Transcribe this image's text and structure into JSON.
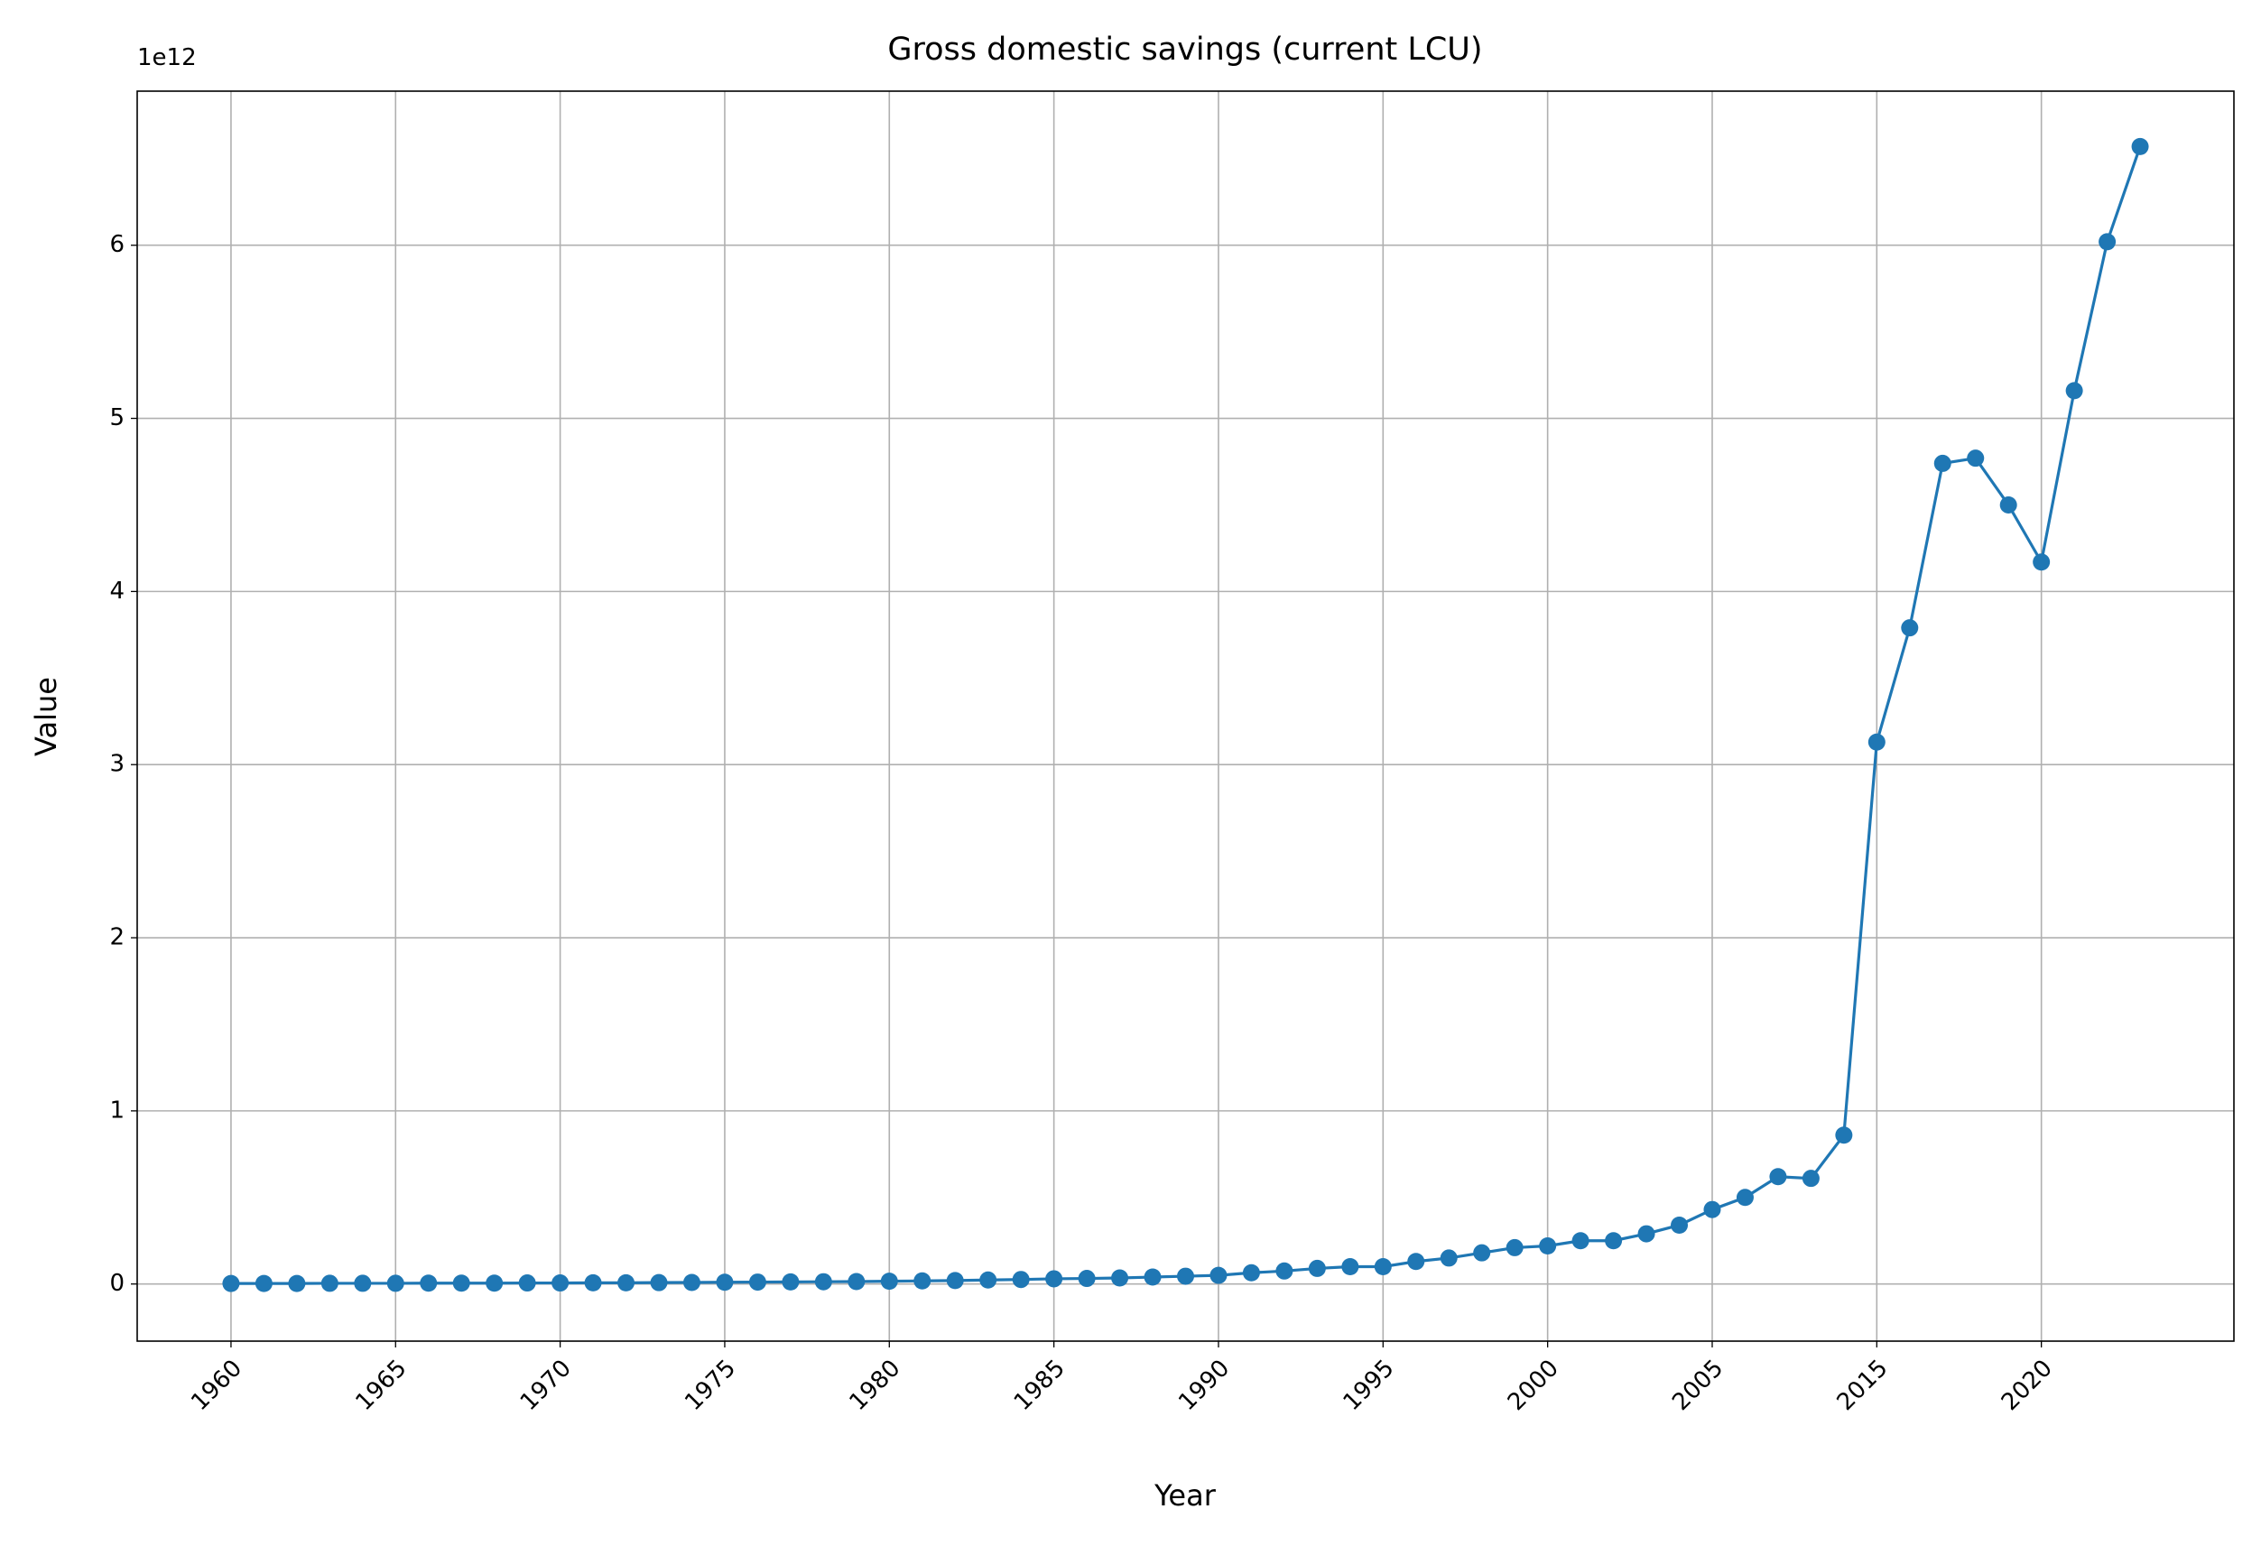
{
  "chart_data": {
    "type": "line",
    "title": "Gross domestic savings (current LCU)",
    "x_label": "Year",
    "y_label": "Value",
    "y_offset_label": "1e12",
    "categories": [
      "1960",
      null,
      null,
      null,
      null,
      "1965",
      null,
      null,
      null,
      null,
      "1970",
      null,
      null,
      null,
      null,
      "1975",
      null,
      null,
      null,
      null,
      "1980",
      null,
      null,
      null,
      null,
      "1985",
      null,
      null,
      null,
      null,
      "1990",
      null,
      null,
      null,
      null,
      "1995",
      null,
      null,
      null,
      null,
      "2000",
      null,
      null,
      null,
      null,
      "2005",
      null,
      null,
      null,
      null,
      "2015",
      null,
      null,
      null,
      null,
      "2020",
      null,
      null,
      null
    ],
    "series": [
      {
        "name": "Gross domestic savings",
        "color": "#1f77b4",
        "values": [
          0.003,
          0.003,
          0.003,
          0.004,
          0.004,
          0.004,
          0.005,
          0.005,
          0.005,
          0.006,
          0.006,
          0.007,
          0.007,
          0.008,
          0.009,
          0.01,
          0.011,
          0.012,
          0.013,
          0.014,
          0.016,
          0.018,
          0.02,
          0.023,
          0.026,
          0.03,
          0.032,
          0.035,
          0.04,
          0.045,
          0.05,
          0.065,
          0.075,
          0.09,
          0.1,
          0.1,
          0.13,
          0.15,
          0.18,
          0.21,
          0.22,
          0.25,
          0.25,
          0.29,
          0.34,
          0.43,
          0.5,
          0.62,
          0.61,
          0.86,
          3.13,
          3.79,
          4.74,
          4.77,
          4.5,
          4.17,
          5.16,
          6.02,
          6.57
        ]
      }
    ],
    "ylim": [
      -0.33,
      6.89
    ],
    "yticks": [
      0,
      1,
      2,
      3,
      4,
      5,
      6
    ],
    "grid": true,
    "markers": true
  }
}
